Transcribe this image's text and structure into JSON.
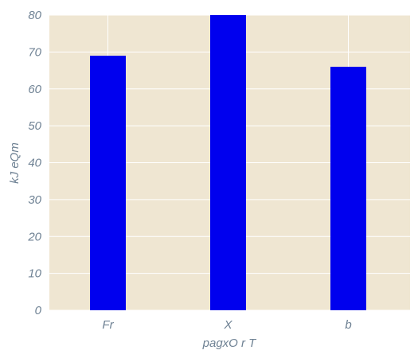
{
  "chart_data": {
    "type": "bar",
    "categories": [
      "Fr",
      "X",
      "b"
    ],
    "values": [
      69,
      80,
      66
    ],
    "xlabel": "pagxO  r T",
    "ylabel": "kJ eQm",
    "ylim": [
      0,
      80
    ],
    "yticks": [
      0,
      10,
      20,
      30,
      40,
      50,
      60,
      70,
      80
    ],
    "grid": true,
    "colors": {
      "bar": "#0000ee",
      "background": "#efe6d2",
      "grid": "#ffffff",
      "text": "#6f8294"
    }
  }
}
